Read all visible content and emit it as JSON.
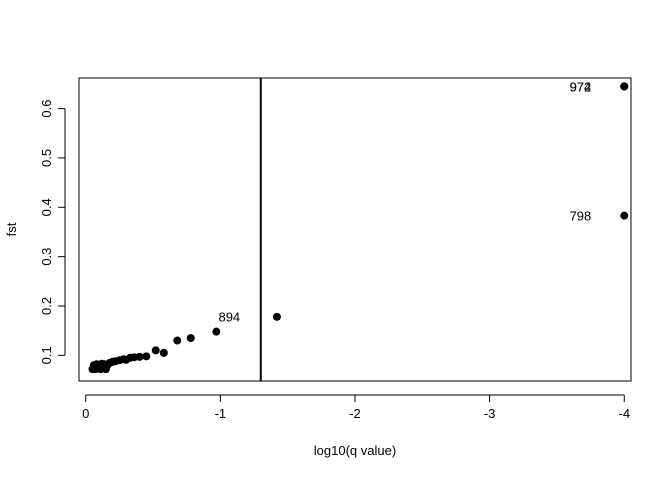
{
  "chart_data": {
    "type": "scatter",
    "title": "",
    "xlabel": "log10(q value)",
    "ylabel": "fst",
    "xlim": [
      0.05,
      -4.05
    ],
    "ylim": [
      0.048,
      0.662
    ],
    "x_ticks": [
      0,
      -1,
      -2,
      -3,
      -4
    ],
    "x_tick_labels": [
      "0",
      "-1",
      "-2",
      "-3",
      "-4"
    ],
    "y_ticks": [
      0.1,
      0.2,
      0.3,
      0.4,
      0.5,
      0.6
    ],
    "y_tick_labels": [
      "0.1",
      "0.2",
      "0.3",
      "0.4",
      "0.5",
      "0.6"
    ],
    "grid": false,
    "legend": "none",
    "threshold_line": {
      "orientation": "vertical",
      "x": -1.3
    },
    "points": [
      {
        "x": -0.05,
        "y": 0.072
      },
      {
        "x": -0.06,
        "y": 0.075
      },
      {
        "x": -0.07,
        "y": 0.072
      },
      {
        "x": -0.08,
        "y": 0.078
      },
      {
        "x": -0.09,
        "y": 0.073
      },
      {
        "x": -0.1,
        "y": 0.076
      },
      {
        "x": -0.11,
        "y": 0.072
      },
      {
        "x": -0.12,
        "y": 0.079
      },
      {
        "x": -0.13,
        "y": 0.074
      },
      {
        "x": -0.14,
        "y": 0.077
      },
      {
        "x": -0.15,
        "y": 0.072
      },
      {
        "x": -0.16,
        "y": 0.08
      },
      {
        "x": -0.06,
        "y": 0.08
      },
      {
        "x": -0.08,
        "y": 0.082
      },
      {
        "x": -0.1,
        "y": 0.081
      },
      {
        "x": -0.12,
        "y": 0.083
      },
      {
        "x": -0.14,
        "y": 0.082
      },
      {
        "x": -0.18,
        "y": 0.085
      },
      {
        "x": -0.2,
        "y": 0.087
      },
      {
        "x": -0.22,
        "y": 0.088
      },
      {
        "x": -0.25,
        "y": 0.09
      },
      {
        "x": -0.28,
        "y": 0.092
      },
      {
        "x": -0.3,
        "y": 0.091
      },
      {
        "x": -0.33,
        "y": 0.095
      },
      {
        "x": -0.36,
        "y": 0.096
      },
      {
        "x": -0.4,
        "y": 0.097
      },
      {
        "x": -0.45,
        "y": 0.098
      },
      {
        "x": -0.52,
        "y": 0.11
      },
      {
        "x": -0.58,
        "y": 0.105
      },
      {
        "x": -0.68,
        "y": 0.13
      },
      {
        "x": -0.78,
        "y": 0.135
      },
      {
        "x": -0.97,
        "y": 0.148
      },
      {
        "x": -1.42,
        "y": 0.178
      },
      {
        "x": -4.0,
        "y": 0.645
      },
      {
        "x": -4.0,
        "y": 0.645
      },
      {
        "x": -4.0,
        "y": 0.383
      }
    ],
    "annotations": [
      {
        "text": "894",
        "x": -0.97,
        "y": 0.148,
        "position": "above"
      },
      {
        "text": "972",
        "x": -4.0,
        "y": 0.645,
        "position": "left"
      },
      {
        "text": "974",
        "x": -4.0,
        "y": 0.645,
        "position": "left"
      },
      {
        "text": "798",
        "x": -4.0,
        "y": 0.383,
        "position": "left"
      }
    ]
  }
}
